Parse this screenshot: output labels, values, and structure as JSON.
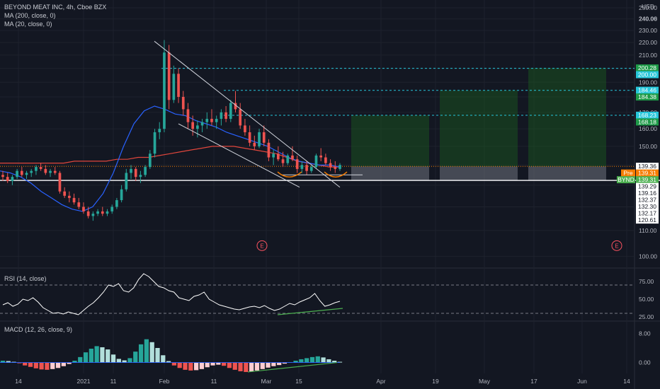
{
  "header": {
    "symbol_line": "BEYOND MEAT INC, 4h, Cboe BZX",
    "ma200_label": "MA (200, close, 0)",
    "ma20_label": "MA (20, close, 0)"
  },
  "currency": "USD",
  "rsi_title": "RSI (14, close)",
  "macd_title": "MACD (12, 26, close, 9)",
  "colors": {
    "background": "#131722",
    "up": "#26a69a",
    "down": "#ef5350",
    "ma200": "#e0463c",
    "ma20": "#2962ff",
    "target_cyan": "#26c6da",
    "target_green": "#1e9a48",
    "pre_orange": "#f57c00",
    "current_green": "#4caf50"
  },
  "chart_data": [
    {
      "type": "line",
      "name_hint": "price",
      "yscale": "log",
      "ylim": [
        96,
        252
      ],
      "y_ticks": [
        100,
        110,
        120,
        130,
        140,
        150,
        160,
        170,
        180,
        190,
        200,
        210,
        220,
        230,
        240,
        250
      ],
      "highlight_tick": "240.06",
      "x_ticks": [
        "14",
        "2021",
        "11",
        "Feb",
        "11",
        "Mar",
        "15",
        "Apr",
        "19",
        "May",
        "17",
        "Jun",
        "14"
      ],
      "candles_ohlc": [
        [
          135,
          137,
          132,
          134
        ],
        [
          134,
          136,
          131,
          132
        ],
        [
          132,
          135,
          130,
          134
        ],
        [
          134,
          138,
          133,
          137
        ],
        [
          137,
          139,
          134,
          135
        ],
        [
          135,
          137,
          133,
          136
        ],
        [
          136,
          138,
          134,
          137
        ],
        [
          137,
          140,
          135,
          139
        ],
        [
          139,
          141,
          137,
          138
        ],
        [
          138,
          140,
          135,
          136
        ],
        [
          136,
          138,
          134,
          137
        ],
        [
          137,
          139,
          135,
          136
        ],
        [
          136,
          137,
          126,
          127
        ],
        [
          127,
          129,
          124,
          125
        ],
        [
          125,
          127,
          122,
          124
        ],
        [
          124,
          126,
          121,
          122
        ],
        [
          122,
          124,
          119,
          120
        ],
        [
          120,
          122,
          117,
          118
        ],
        [
          118,
          120,
          115,
          116
        ],
        [
          116,
          118,
          114,
          117
        ],
        [
          117,
          119,
          116,
          118
        ],
        [
          118,
          120,
          116,
          117
        ],
        [
          117,
          119,
          116,
          118
        ],
        [
          118,
          121,
          117,
          120
        ],
        [
          120,
          124,
          119,
          123
        ],
        [
          123,
          130,
          122,
          128
        ],
        [
          128,
          138,
          127,
          136
        ],
        [
          136,
          140,
          133,
          138
        ],
        [
          138,
          139,
          132,
          134
        ],
        [
          134,
          137,
          131,
          135
        ],
        [
          135,
          140,
          134,
          139
        ],
        [
          139,
          148,
          138,
          146
        ],
        [
          146,
          160,
          144,
          158
        ],
        [
          158,
          164,
          154,
          160
        ],
        [
          160,
          222,
          158,
          212
        ],
        [
          212,
          218,
          172,
          178
        ],
        [
          178,
          202,
          176,
          196
        ],
        [
          196,
          200,
          176,
          180
        ],
        [
          180,
          184,
          168,
          172
        ],
        [
          172,
          176,
          160,
          164
        ],
        [
          164,
          168,
          156,
          160
        ],
        [
          160,
          165,
          155,
          162
        ],
        [
          162,
          166,
          158,
          164
        ],
        [
          164,
          170,
          160,
          166
        ],
        [
          166,
          172,
          162,
          164
        ],
        [
          164,
          168,
          160,
          166
        ],
        [
          166,
          172,
          162,
          170
        ],
        [
          170,
          174,
          164,
          166
        ],
        [
          166,
          178,
          164,
          176
        ],
        [
          176,
          184,
          170,
          172
        ],
        [
          172,
          176,
          160,
          162
        ],
        [
          162,
          166,
          156,
          158
        ],
        [
          158,
          162,
          150,
          152
        ],
        [
          152,
          156,
          148,
          150
        ],
        [
          150,
          160,
          149,
          158
        ],
        [
          158,
          162,
          150,
          152
        ],
        [
          152,
          154,
          142,
          144
        ],
        [
          144,
          148,
          140,
          146
        ],
        [
          146,
          150,
          142,
          143
        ],
        [
          143,
          147,
          139,
          141
        ],
        [
          141,
          146,
          140,
          145
        ],
        [
          145,
          150,
          142,
          143
        ],
        [
          143,
          145,
          136,
          138
        ],
        [
          138,
          142,
          136,
          140
        ],
        [
          140,
          142,
          135,
          137
        ],
        [
          137,
          140,
          136,
          139
        ],
        [
          139,
          146,
          138,
          145
        ],
        [
          145,
          149,
          142,
          144
        ],
        [
          144,
          146,
          140,
          141
        ],
        [
          141,
          143,
          137,
          139
        ],
        [
          139,
          142,
          136,
          138
        ],
        [
          138,
          141,
          137,
          140
        ]
      ],
      "ma200_values": [
        141,
        141,
        141,
        141,
        141,
        141,
        141,
        142,
        142,
        142,
        142,
        143,
        143,
        144,
        144,
        145,
        146,
        147,
        148,
        149,
        150,
        150,
        150,
        149,
        148,
        147,
        146,
        144,
        142,
        141,
        140,
        139,
        139
      ],
      "ma20_values": [
        137,
        136,
        134,
        131,
        127,
        124,
        121,
        119,
        118,
        120,
        126,
        136,
        150,
        163,
        171,
        174,
        172,
        169,
        168,
        165,
        163,
        161,
        158,
        156,
        154,
        152,
        150,
        147,
        144,
        142,
        141,
        140,
        140,
        139
      ],
      "levels": [
        {
          "value": 200.28,
          "label": "200.28",
          "color": "#1e9a48"
        },
        {
          "value": 200.0,
          "label": "200.00",
          "color": "#26c6da"
        },
        {
          "value": 184.46,
          "label": "184.46",
          "color": "#26c6da"
        },
        {
          "value": 184.38,
          "label": "184.38",
          "color": "#1e9a48"
        },
        {
          "value": 168.23,
          "label": "168.23",
          "color": "#26c6da"
        },
        {
          "value": 168.18,
          "label": "168.18",
          "color": "#1e9a48"
        },
        {
          "value": 139.36,
          "label": "139.36",
          "color": "#ffffff"
        },
        {
          "value": 139.31,
          "label": "139.31",
          "color": "#f57c00",
          "prefix": "Pre"
        },
        {
          "value": 139.31,
          "label": "139.31",
          "color": "#4caf50",
          "prefix": "BYND"
        },
        {
          "value": 139.29,
          "label": "139.29",
          "color": "#ffffff"
        },
        {
          "value": 139.16,
          "label": "139.16",
          "color": "#ffffff"
        },
        {
          "value": 132.37,
          "label": "132.37",
          "color": "#ffffff"
        },
        {
          "value": 132.3,
          "label": "132.30",
          "color": "#ffffff"
        },
        {
          "value": 132.17,
          "label": "132.17",
          "color": "#ffffff"
        },
        {
          "value": 120.61,
          "label": "120.61",
          "color": "#ffffff"
        }
      ],
      "earnings_marker": "E",
      "targets": [
        {
          "from_week": 10.5,
          "to_week": 15.8,
          "top": 168.2,
          "stop": 132.3
        },
        {
          "from_week": 16.3,
          "to_week": 21.6,
          "top": 184.4,
          "stop": 132.3
        },
        {
          "from_week": 22.1,
          "to_week": 27.4,
          "top": 200.3,
          "stop": 132.3
        }
      ]
    },
    {
      "type": "line",
      "name_hint": "rsi",
      "ylim": [
        20,
        92
      ],
      "y_ticks": [
        "75.00",
        "50.00",
        "25.00"
      ],
      "bands": [
        70,
        30
      ],
      "values": [
        42,
        45,
        40,
        43,
        50,
        48,
        52,
        46,
        38,
        34,
        30,
        31,
        29,
        32,
        30,
        28,
        34,
        40,
        45,
        52,
        60,
        70,
        68,
        72,
        62,
        60,
        66,
        78,
        86,
        82,
        75,
        68,
        66,
        62,
        60,
        52,
        50,
        48,
        54,
        56,
        60,
        50,
        46,
        42,
        40,
        38,
        36,
        35,
        37,
        39,
        40,
        38,
        41,
        37,
        34,
        36,
        40,
        44,
        42,
        46,
        49,
        52,
        58,
        48,
        40,
        42,
        45,
        47
      ]
    },
    {
      "type": "bar",
      "name_hint": "macd",
      "ylim": [
        -3,
        11
      ],
      "y_ticks": [
        "8.00",
        "0.00"
      ],
      "values": [
        0.5,
        0.4,
        0.2,
        -0.2,
        -0.8,
        -1.2,
        -1.6,
        -1.9,
        -2.0,
        -1.8,
        -1.5,
        -1.0,
        -0.4,
        0.5,
        1.5,
        2.8,
        3.8,
        4.5,
        4.2,
        3.6,
        2.2,
        1.0,
        0.6,
        1.2,
        3.0,
        5.0,
        6.4,
        5.6,
        4.0,
        2.0,
        0.4,
        -0.8,
        -1.5,
        -2.0,
        -2.2,
        -2.1,
        -1.8,
        -1.3,
        -0.8,
        -0.6,
        -0.9,
        -1.5,
        -2.0,
        -2.4,
        -2.6,
        -2.5,
        -2.2,
        -1.8,
        -1.4,
        -1.0,
        -0.7,
        -0.3,
        0.1,
        0.5,
        0.9,
        1.2,
        1.5,
        1.7,
        1.4,
        0.9,
        0.5,
        0.2
      ]
    }
  ]
}
